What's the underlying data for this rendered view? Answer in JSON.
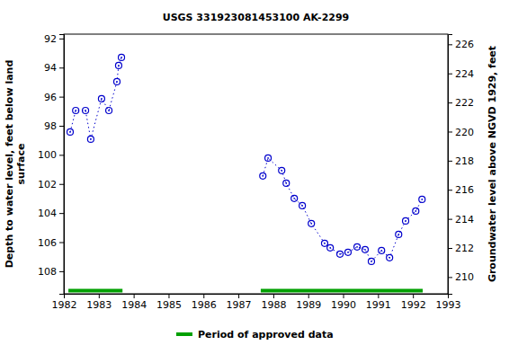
{
  "chart_data": {
    "type": "line",
    "title": "USGS 331923081453100 AK-2299",
    "ylabel": [
      "Depth to water level, feet below land",
      "surface"
    ],
    "y2label": "Groundwater level above NGVD 1929, feet",
    "xlim": [
      1982,
      1993
    ],
    "xticks": [
      1982,
      1983,
      1984,
      1985,
      1986,
      1987,
      1988,
      1989,
      1990,
      1991,
      1992,
      1993
    ],
    "ylim": [
      109.55,
      91.7
    ],
    "yticks": [
      92,
      94,
      96,
      98,
      100,
      102,
      104,
      106,
      108
    ],
    "y2lim": [
      208.85,
      226.7
    ],
    "y2ticks": [
      210,
      212,
      214,
      216,
      218,
      220,
      222,
      224,
      226
    ],
    "grid": false,
    "series": [
      {
        "color": "#0000cc",
        "marker": "circle",
        "line_style": "dotted",
        "x": [
          1982.18,
          1982.34,
          1982.62,
          1982.77,
          1983.08,
          1983.29,
          1983.52,
          1983.57,
          1983.65
        ],
        "values": [
          98.43,
          96.95,
          96.95,
          98.92,
          96.14,
          96.95,
          94.97,
          93.86,
          93.3
        ]
      },
      {
        "color": "#0000cc",
        "marker": "circle",
        "line_style": "dotted",
        "x": [
          1987.7,
          1987.85,
          1988.24,
          1988.37,
          1988.6,
          1988.83,
          1989.09,
          1989.47,
          1989.63,
          1989.91,
          1990.14,
          1990.4,
          1990.63,
          1990.81,
          1991.1,
          1991.33,
          1991.59,
          1991.79,
          1992.08,
          1992.26
        ],
        "values": [
          101.45,
          100.22,
          101.08,
          101.95,
          102.99,
          103.49,
          104.72,
          106.08,
          106.39,
          106.82,
          106.7,
          106.33,
          106.51,
          107.32,
          106.58,
          107.07,
          105.47,
          104.54,
          103.86,
          103.06
        ]
      }
    ],
    "approved_periods": {
      "name": "Period of approved data",
      "color": "#00a000",
      "ranges": [
        [
          1982.13,
          1983.68
        ],
        [
          1987.64,
          1992.28
        ]
      ]
    }
  }
}
